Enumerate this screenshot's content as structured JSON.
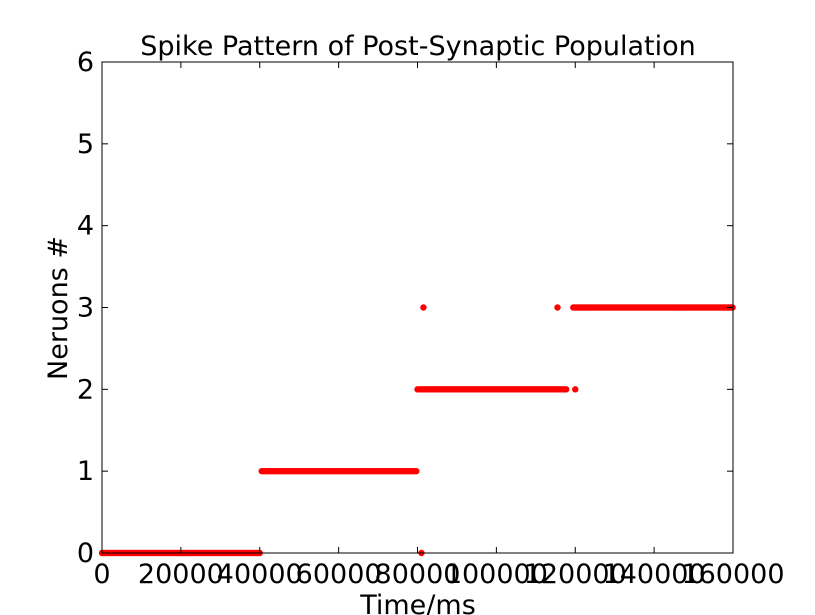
{
  "chart_data": {
    "type": "scatter",
    "title": "Spike Pattern of Post-Synaptic Population",
    "xlabel": "Time/ms",
    "ylabel": "Neruons #",
    "xlim": [
      0,
      160000
    ],
    "ylim": [
      0,
      6
    ],
    "xticks": [
      0,
      20000,
      40000,
      60000,
      80000,
      100000,
      120000,
      140000,
      160000
    ],
    "xtick_labels": [
      "0",
      "20000",
      "40000",
      "60000",
      "80000",
      "100000",
      "120000",
      "140000",
      "160000"
    ],
    "yticks": [
      0,
      1,
      2,
      3,
      4,
      5,
      6
    ],
    "ytick_labels": [
      "0",
      "1",
      "2",
      "3",
      "4",
      "5",
      "6"
    ],
    "grid": false,
    "marker_color": "#ff0000",
    "series": [
      {
        "segments": [
          {
            "neuron": 0,
            "x_start": 0,
            "x_end": 40000,
            "step": 400
          },
          {
            "neuron": 1,
            "x_start": 40500,
            "x_end": 80000,
            "step": 400
          },
          {
            "neuron": 2,
            "x_start": 80500,
            "x_end": 118000,
            "step": 400
          },
          {
            "neuron": 3,
            "x_start": 119500,
            "x_end": 160000,
            "step": 400
          }
        ],
        "points": [
          {
            "x": 81000,
            "y": 0
          },
          {
            "x": 81500,
            "y": 3
          },
          {
            "x": 80000,
            "y": 2
          },
          {
            "x": 115500,
            "y": 3
          },
          {
            "x": 120000,
            "y": 2
          }
        ]
      }
    ]
  }
}
